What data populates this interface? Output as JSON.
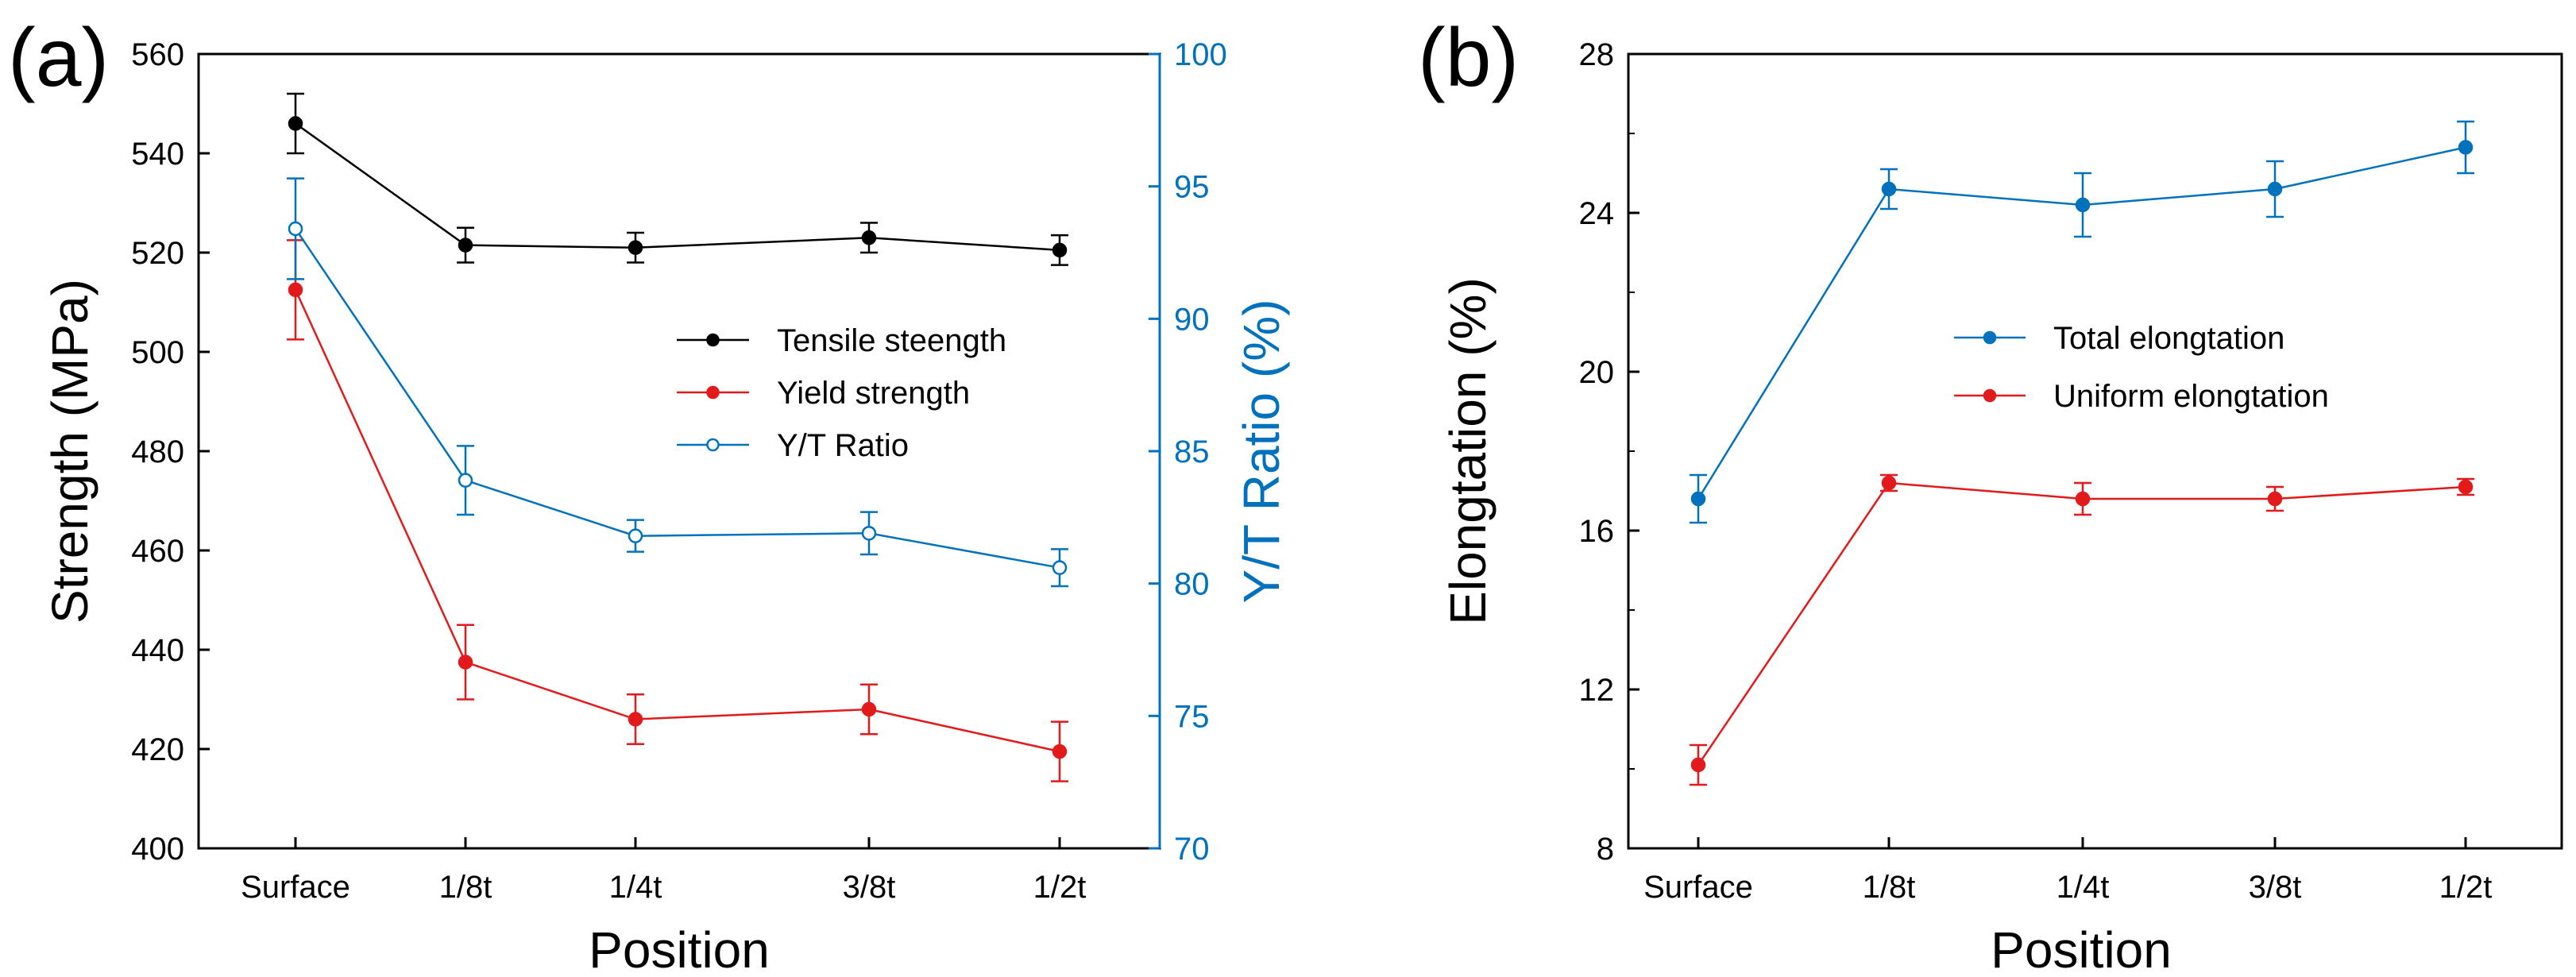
{
  "colors": {
    "black": "#000000",
    "red": "#e31a1c",
    "blue": "#0072bd",
    "white": "#ffffff"
  },
  "chart_data": [
    {
      "id": "a",
      "type": "line",
      "panel_label": "(a)",
      "xlabel": "Position",
      "ylabel": "Strength (MPa)",
      "y2label": "Y/T Ratio (%)",
      "categories": [
        "Surface",
        "1/8t",
        "1/4t",
        "3/8t",
        "1/2t"
      ],
      "ylim": [
        400,
        560
      ],
      "yticks": [
        400,
        420,
        440,
        460,
        480,
        500,
        520,
        540,
        560
      ],
      "y2lim": [
        70,
        100
      ],
      "y2ticks": [
        70,
        75,
        80,
        85,
        90,
        95,
        100
      ],
      "legend_position": "center-right",
      "series": [
        {
          "name": "Tensile steength",
          "axis": "left",
          "color": "#000000",
          "marker": "filled-circle",
          "values": [
            546,
            521.5,
            521,
            523,
            520.5
          ],
          "errors": [
            6,
            3.5,
            3,
            3,
            3
          ]
        },
        {
          "name": "Yield strength",
          "axis": "left",
          "color": "#e31a1c",
          "marker": "filled-circle",
          "values": [
            512.5,
            437.5,
            426,
            428,
            419.5
          ],
          "errors": [
            10,
            7.5,
            5,
            5,
            6
          ]
        },
        {
          "name": "Y/T Ratio",
          "axis": "right",
          "color": "#0072bd",
          "marker": "open-circle",
          "values": [
            93.4,
            83.9,
            81.8,
            81.9,
            80.6
          ],
          "errors": [
            1.9,
            1.3,
            0.6,
            0.8,
            0.7
          ]
        }
      ]
    },
    {
      "id": "b",
      "type": "line",
      "panel_label": "(b)",
      "xlabel": "Position",
      "ylabel": "Elongtation (%)",
      "categories": [
        "Surface",
        "1/8t",
        "1/4t",
        "3/8t",
        "1/2t"
      ],
      "ylim": [
        8,
        28
      ],
      "yticks": [
        8,
        12,
        16,
        20,
        24,
        28
      ],
      "legend_position": "top-center",
      "series": [
        {
          "name": "Total elongtation",
          "axis": "left",
          "color": "#0072bd",
          "marker": "filled-circle",
          "values": [
            16.8,
            24.6,
            24.2,
            24.6,
            25.65
          ],
          "errors": [
            0.6,
            0.5,
            0.8,
            0.7,
            0.65
          ]
        },
        {
          "name": "Uniform elongtation",
          "axis": "left",
          "color": "#e31a1c",
          "marker": "filled-circle",
          "values": [
            10.1,
            17.2,
            16.8,
            16.8,
            17.1
          ],
          "errors": [
            0.5,
            0.2,
            0.4,
            0.3,
            0.2
          ]
        }
      ]
    }
  ]
}
